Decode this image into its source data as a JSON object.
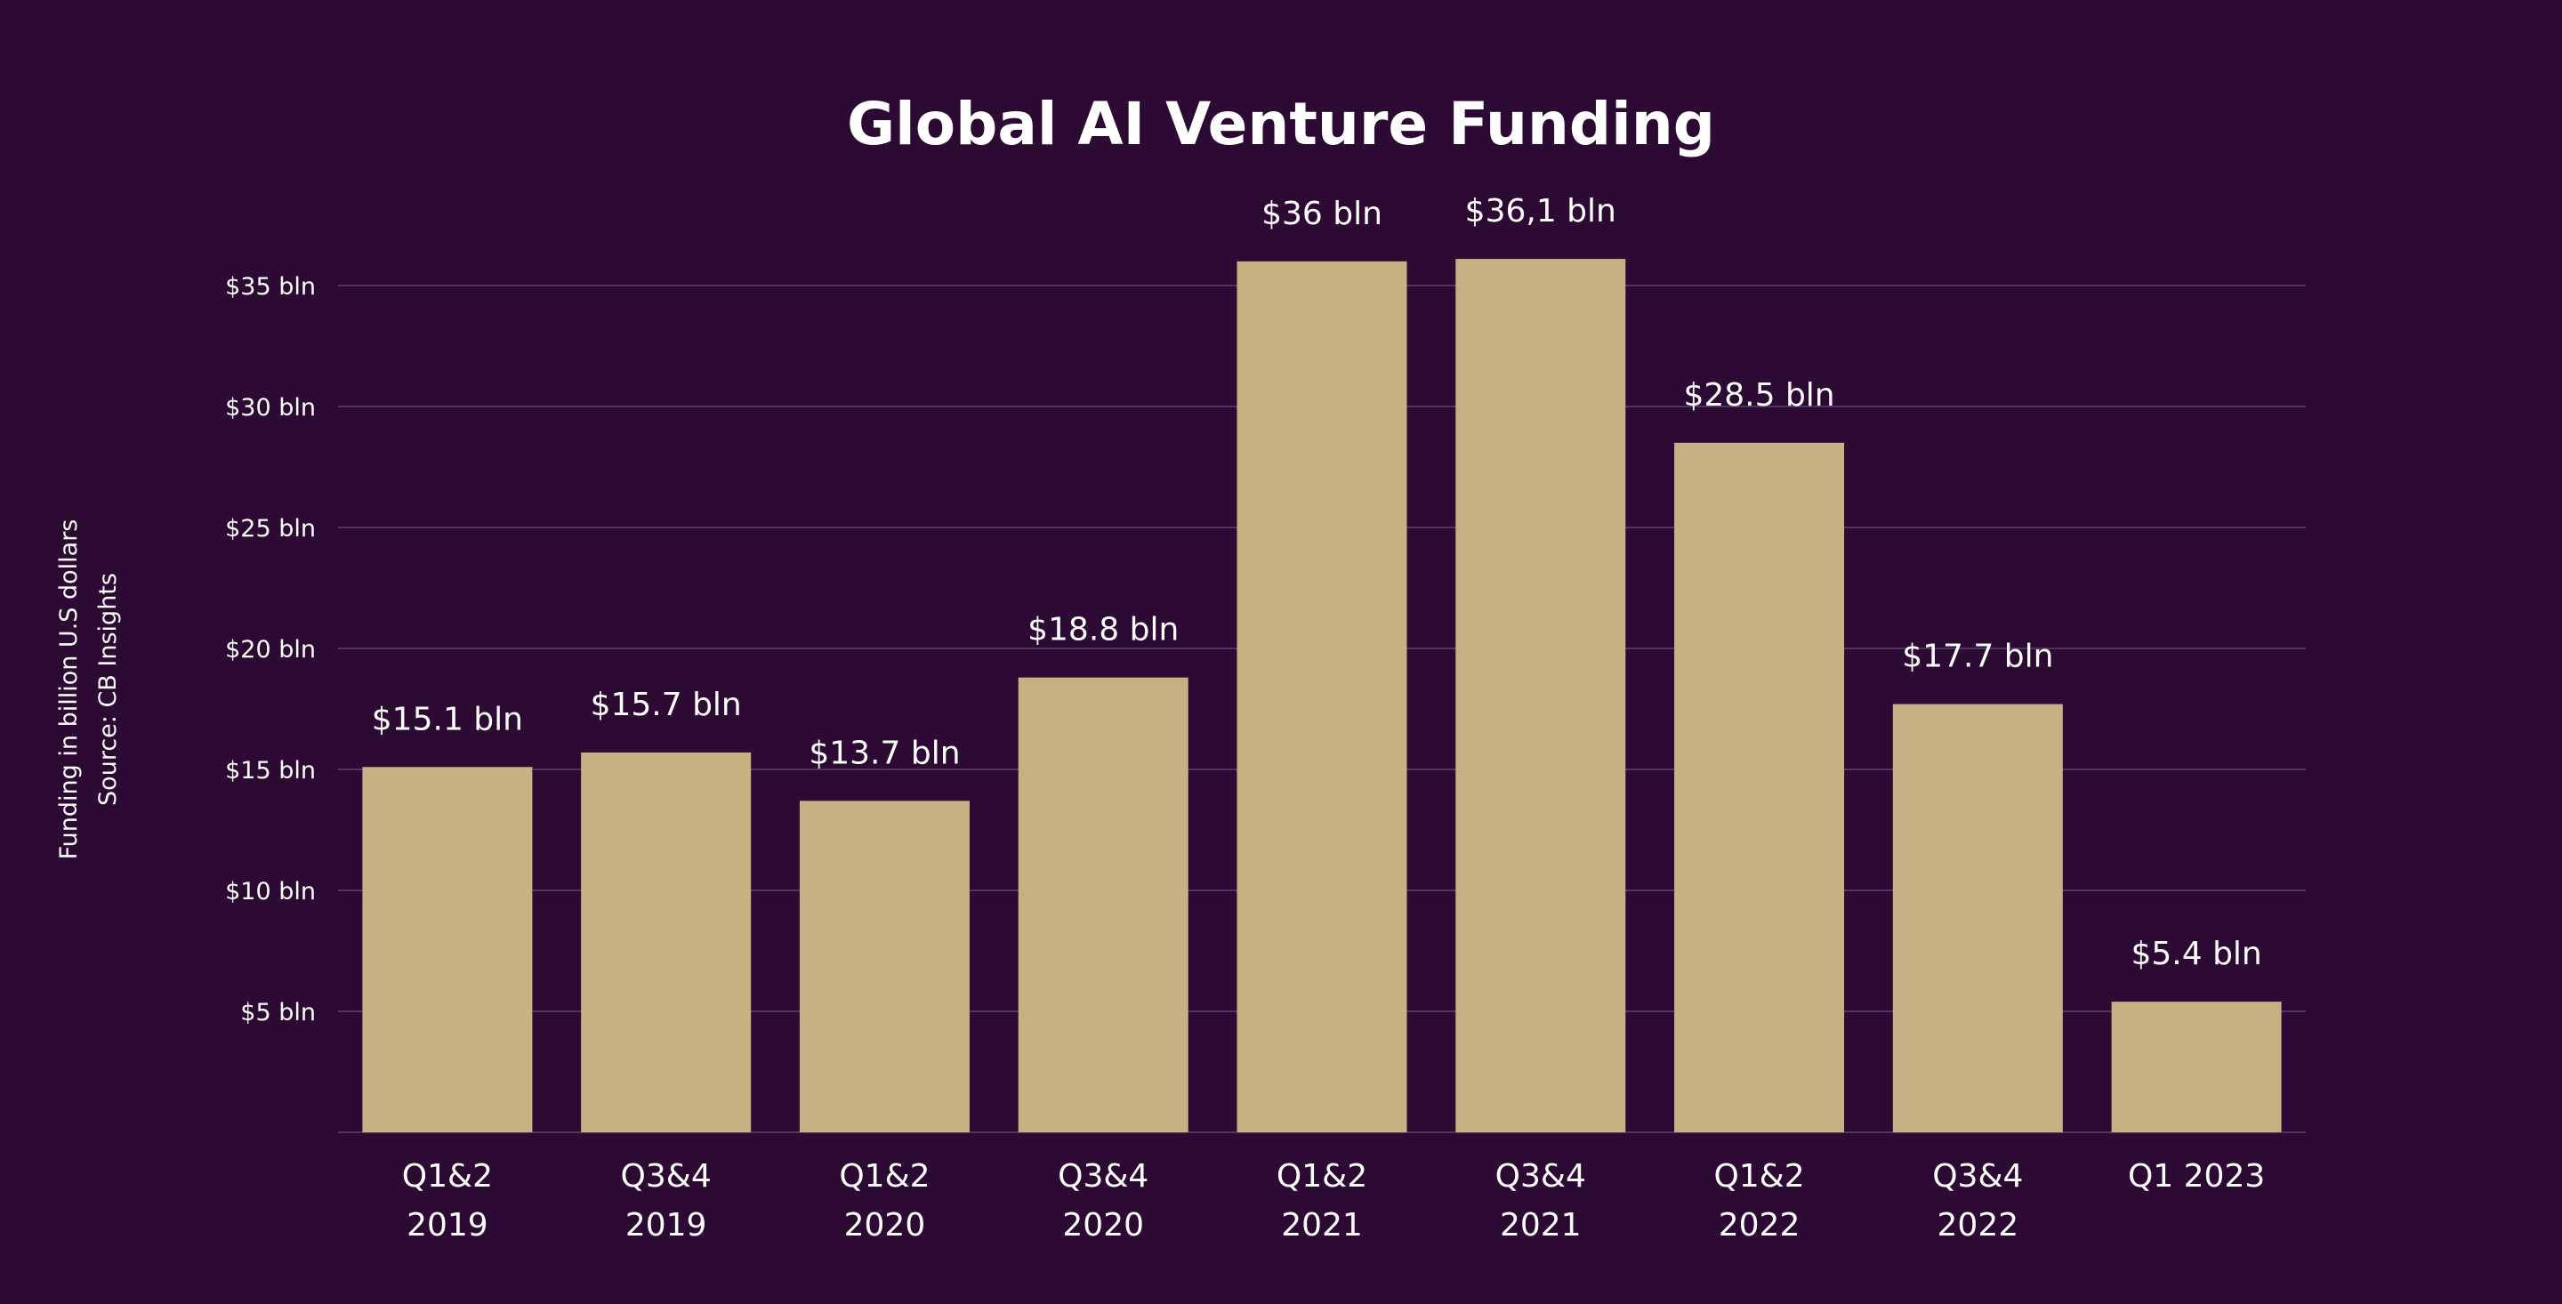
{
  "chart_data": {
    "type": "bar",
    "title": "Global AI Venture Funding",
    "ylabel": "Funding in billion U.S dollars",
    "source": "Source: CB Insights",
    "xlabel": "",
    "ylim": [
      0,
      35
    ],
    "grid": true,
    "legend": "none",
    "yticks": [
      {
        "value": 5,
        "label": "$5 bln"
      },
      {
        "value": 10,
        "label": "$10 bln"
      },
      {
        "value": 15,
        "label": "$15 bln"
      },
      {
        "value": 20,
        "label": "$20 bln"
      },
      {
        "value": 25,
        "label": "$25 bln"
      },
      {
        "value": 30,
        "label": "$30 bln"
      },
      {
        "value": 35,
        "label": "$35 bln"
      }
    ],
    "categories": [
      [
        "Q1&2",
        "2019"
      ],
      [
        "Q3&4",
        "2019"
      ],
      [
        "Q1&2",
        "2020"
      ],
      [
        "Q3&4",
        "2020"
      ],
      [
        "Q1&2",
        "2021"
      ],
      [
        "Q3&4",
        "2021"
      ],
      [
        "Q1&2",
        "2022"
      ],
      [
        "Q3&4",
        "2022"
      ],
      [
        "Q1 2023"
      ]
    ],
    "values": [
      15.1,
      15.7,
      13.7,
      18.8,
      36,
      36.1,
      28.5,
      17.7,
      5.4
    ],
    "data_labels": [
      "$15.1 bln",
      "$15.7 bln",
      "$13.7 bln",
      "$18.8 bln",
      "$36 bln",
      "$36,1 bln",
      "$28.5 bln",
      "$17.7 bln",
      "$5.4 bln"
    ],
    "colors": {
      "background": "#2c0a33",
      "bar": "#c5b181",
      "grid": "#4e3560",
      "text": "#ffffff"
    }
  }
}
